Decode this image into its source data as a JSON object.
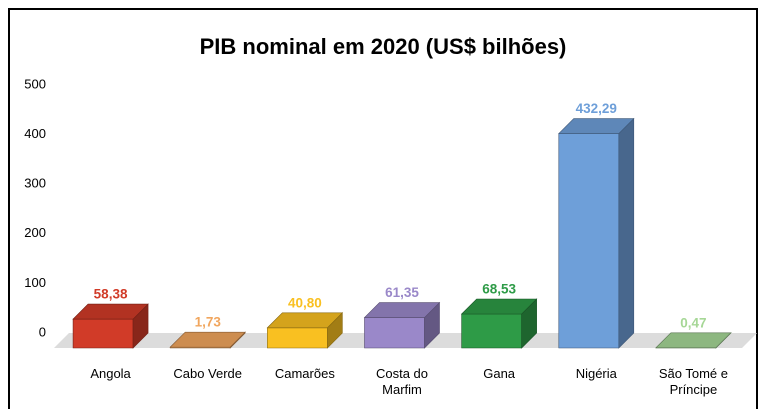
{
  "chart_data": {
    "type": "bar3d",
    "title": "PIB nominal em 2020 (US$ bilhões)",
    "categories": [
      "Angola",
      "Cabo Verde",
      "Camarões",
      "Costa do Marfim",
      "Gana",
      "Nigéria",
      "São Tomé e Príncipe"
    ],
    "values": [
      58.38,
      1.73,
      40.8,
      61.35,
      68.53,
      432.29,
      0.47
    ],
    "value_labels": [
      "58,38",
      "1,73",
      "40,80",
      "61,35",
      "68,53",
      "432,29",
      "0,47"
    ],
    "colors": [
      "#d13b28",
      "#f1a65e",
      "#f9c021",
      "#9a88c9",
      "#2e9b47",
      "#6e9fd9",
      "#a6d796"
    ],
    "ylim": [
      0,
      500
    ],
    "yticks": [
      0,
      100,
      200,
      300,
      400,
      500
    ],
    "grid": false
  }
}
